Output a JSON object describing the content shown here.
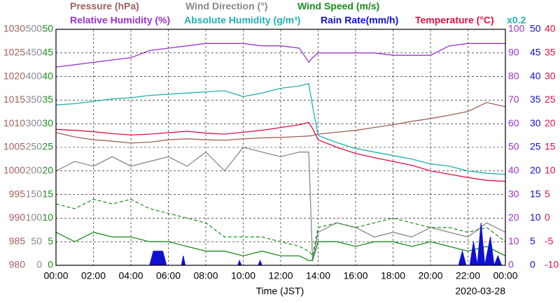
{
  "chart_data": {
    "type": "line",
    "xlabel": "Time (JST)",
    "date": "2020-03-28",
    "grid": true,
    "xlim": [
      0,
      24
    ],
    "xticks": [
      {
        "value": 0,
        "label": "00:00"
      },
      {
        "value": 2,
        "label": "02:00"
      },
      {
        "value": 4,
        "label": "04:00"
      },
      {
        "value": 6,
        "label": "06:00"
      },
      {
        "value": 8,
        "label": "08:00"
      },
      {
        "value": 10,
        "label": "10:00"
      },
      {
        "value": 12,
        "label": "12:00"
      },
      {
        "value": 14,
        "label": "14:00"
      },
      {
        "value": 16,
        "label": "16:00"
      },
      {
        "value": 18,
        "label": "18:00"
      },
      {
        "value": 20,
        "label": "20:00"
      },
      {
        "value": 22,
        "label": "22:00"
      },
      {
        "value": 24,
        "label": "00:00"
      }
    ],
    "x": [
      0,
      1,
      2,
      3,
      4,
      5,
      6,
      7,
      8,
      9,
      10,
      11,
      12,
      13,
      13.5,
      13.7,
      14,
      15,
      16,
      17,
      18,
      19,
      20,
      21,
      22,
      23,
      24
    ],
    "series": [
      {
        "name": "Pressure (hPa)",
        "color": "#a0605a",
        "side": "left",
        "ylim": [
          980,
          1030
        ],
        "yticks": [
          980,
          985,
          990,
          995,
          1000,
          1005,
          1010,
          1015,
          1020,
          1025,
          1030
        ],
        "values": [
          1008.1,
          1007.2,
          1006.6,
          1006.3,
          1005.9,
          1006.1,
          1006.6,
          1006.8,
          1006.6,
          1006.5,
          1006.8,
          1007.0,
          1007.1,
          1007.3,
          1007.4,
          1007.5,
          1007.8,
          1008.2,
          1008.6,
          1009.2,
          1009.8,
          1010.5,
          1011.1,
          1011.8,
          1012.6,
          1014.5,
          1013.6
        ]
      },
      {
        "name": "Wind Direction (°)",
        "color": "#888888",
        "side": "left",
        "ylim": [
          0,
          500
        ],
        "yticks": [
          0,
          50,
          100,
          150,
          200,
          250,
          300,
          350,
          400,
          450,
          500
        ],
        "values": [
          200,
          220,
          210,
          230,
          210,
          220,
          230,
          210,
          240,
          200,
          250,
          240,
          230,
          240,
          240,
          10,
          70,
          90,
          80,
          60,
          70,
          60,
          80,
          70,
          60,
          90,
          70
        ]
      },
      {
        "name": "Wind Speed (m/s)",
        "color": "#1a8c1a",
        "side": "left",
        "ylim": [
          0,
          50
        ],
        "yticks": [
          0,
          5,
          10,
          15,
          20,
          25,
          30,
          35,
          40,
          45,
          50
        ],
        "values": [
          7,
          5,
          7,
          6,
          6,
          5,
          5,
          4,
          3,
          3,
          2,
          3,
          2,
          2,
          1,
          1,
          5,
          5,
          4,
          5,
          5,
          4,
          5,
          4,
          3,
          4,
          2
        ],
        "gust_values": [
          13,
          12,
          14,
          13,
          14,
          12,
          11,
          10,
          9,
          6,
          6,
          6,
          5,
          4,
          3,
          2,
          8,
          9,
          8,
          9,
          10,
          9,
          8,
          8,
          7,
          8,
          5
        ]
      },
      {
        "name": "Relative Humidity (%)",
        "color": "#9933cc",
        "side": "right",
        "ylim": [
          0,
          100
        ],
        "yticks": [
          0,
          10,
          20,
          30,
          40,
          50,
          60,
          70,
          80,
          90,
          100
        ],
        "values": [
          84,
          85,
          86,
          87,
          88,
          91,
          92,
          93,
          94,
          94,
          94,
          93,
          93,
          92,
          86,
          88,
          90,
          90,
          90,
          90,
          89,
          89,
          89,
          93,
          94,
          94,
          94
        ]
      },
      {
        "name": "Absolute Humidity (g/m³)",
        "color": "#20b0b0",
        "scale": {
          "value": 0.2,
          "label": "x0.2"
        },
        "values": [
          13.6,
          13.7,
          13.9,
          14.1,
          14.2,
          14.4,
          14.5,
          14.6,
          14.7,
          14.8,
          14.3,
          14.6,
          15.0,
          15.2,
          15.4,
          13.5,
          11.0,
          10.4,
          9.9,
          9.6,
          9.3,
          9.0,
          8.6,
          8.4,
          8.0,
          7.8,
          7.7
        ]
      },
      {
        "name": "Rain Rate(mm/h)",
        "color": "#1010d0",
        "side": "right",
        "fill": true,
        "ylim": [
          0,
          50
        ],
        "yticks": [
          0,
          5,
          10,
          15,
          20,
          25,
          30,
          35,
          40,
          45,
          50
        ],
        "x": [
          5.0,
          5.2,
          5.7,
          5.9,
          6.7,
          6.8,
          6.9,
          9.7,
          9.8,
          9.9,
          10.8,
          10.9,
          11.0,
          21.5,
          21.7,
          21.9,
          22.1,
          22.3,
          22.5,
          22.7,
          22.9,
          23.2,
          23.4,
          23.6,
          23.8
        ],
        "values": [
          0,
          3,
          3,
          0,
          0,
          2,
          0,
          0,
          1,
          0,
          0,
          1,
          0,
          0,
          3,
          0,
          0,
          5,
          0,
          9,
          0,
          6,
          0,
          2,
          0
        ]
      },
      {
        "name": "Temperature (°C)",
        "color": "#e01040",
        "side": "right",
        "ylim": [
          -10,
          40
        ],
        "yticks": [
          -10,
          -5,
          0,
          5,
          10,
          15,
          20,
          25,
          30,
          35,
          40
        ],
        "values": [
          18.8,
          18.6,
          18.3,
          17.9,
          17.6,
          17.8,
          18.1,
          18.4,
          18.0,
          17.8,
          18.2,
          18.6,
          19.2,
          19.8,
          20.3,
          19.0,
          16.6,
          15.0,
          13.7,
          12.8,
          12.0,
          11.2,
          10.0,
          9.3,
          8.6,
          8.0,
          7.8
        ]
      }
    ]
  }
}
